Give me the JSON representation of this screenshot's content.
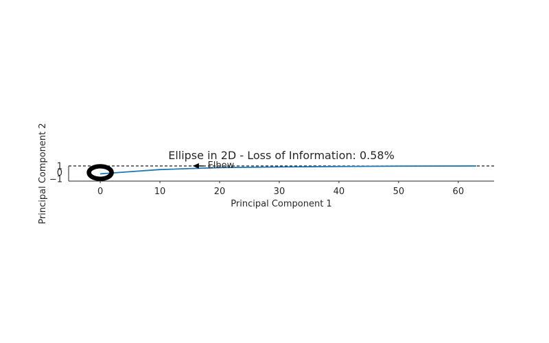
{
  "chart_data": {
    "type": "line",
    "title": "Ellipse in 2D - Loss of Information: 0.58%",
    "xlabel": "Principal Component 1",
    "ylabel": "Principal Component 2",
    "xlim": [
      -5.3,
      66
    ],
    "ylim": [
      -1.3,
      1.2
    ],
    "xticks": [
      0,
      10,
      20,
      30,
      40,
      50,
      60
    ],
    "yticks": [
      1,
      0,
      -1
    ],
    "ytick_labels": [
      "1",
      "0",
      "−1"
    ],
    "grid": false,
    "series": [
      {
        "type": "line",
        "color": "#1f77b4",
        "x": [
          0,
          3,
          10,
          20,
          30,
          40,
          50,
          63
        ],
        "y": [
          -0.2,
          0.0,
          0.45,
          0.75,
          0.85,
          0.92,
          0.97,
          1.0
        ]
      },
      {
        "type": "scatter",
        "shape": "ellipse-ring",
        "color": "#000000",
        "center": [
          0,
          0
        ],
        "radii": [
          1.9,
          0.95
        ],
        "count": 90
      }
    ],
    "hline": {
      "y": 1.0,
      "style": "dashed",
      "color": "#000000"
    },
    "annotation": {
      "text": "Elbow",
      "xy": [
        15.5,
        1.0
      ],
      "xytext": [
        18,
        1.0
      ]
    }
  }
}
